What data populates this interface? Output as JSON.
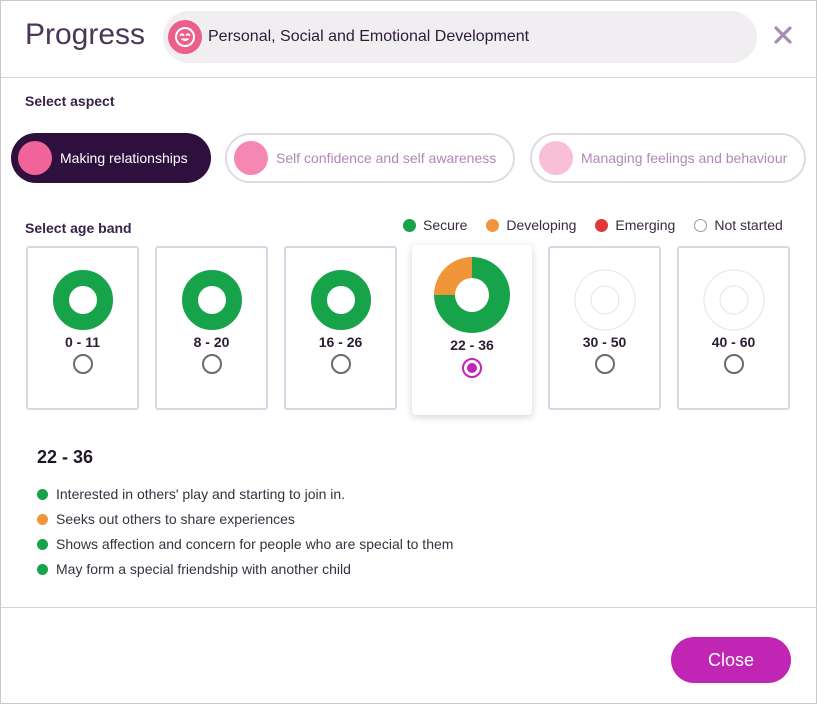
{
  "header": {
    "title": "Progress",
    "area_label": "Personal, Social and Emotional Development",
    "area_icon": "smiley-face-icon",
    "close_icon": "close-icon"
  },
  "colors": {
    "secure": "#16a34a",
    "developing": "#f0963a",
    "emerging": "#e0383b",
    "not_started": "#ffffff",
    "accent": "#c025b4",
    "aspect_active_bg": "#2e0f3e"
  },
  "aspects": {
    "label": "Select aspect",
    "items": [
      {
        "label": "Making relationships",
        "active": true,
        "dot_color": "#f0649a"
      },
      {
        "label": "Self confidence and self awareness",
        "active": false,
        "dot_color": "#f588b2"
      },
      {
        "label": "Managing feelings and behaviour",
        "active": false,
        "dot_color": "#f9bfd6"
      }
    ]
  },
  "age_bands": {
    "label": "Select age band",
    "legend": [
      {
        "label": "Secure",
        "status": "secure"
      },
      {
        "label": "Developing",
        "status": "developing"
      },
      {
        "label": "Emerging",
        "status": "emerging"
      },
      {
        "label": "Not started",
        "status": "not_started"
      }
    ],
    "items": [
      {
        "band": "0 - 11",
        "selected": false,
        "secure": 1,
        "developing": 0,
        "emerging": 0
      },
      {
        "band": "8 - 20",
        "selected": false,
        "secure": 1,
        "developing": 0,
        "emerging": 0
      },
      {
        "band": "16 - 26",
        "selected": false,
        "secure": 1,
        "developing": 0,
        "emerging": 0
      },
      {
        "band": "22 - 36",
        "selected": true,
        "secure": 0.75,
        "developing": 0.25,
        "emerging": 0
      },
      {
        "band": "30 - 50",
        "selected": false,
        "secure": 0,
        "developing": 0,
        "emerging": 0
      },
      {
        "band": "40 - 60",
        "selected": false,
        "secure": 0,
        "developing": 0,
        "emerging": 0
      }
    ]
  },
  "detail": {
    "title": "22 - 36",
    "statements": [
      {
        "text": "Interested in others' play and starting to join in.",
        "status": "secure"
      },
      {
        "text": "Seeks out others to share experiences",
        "status": "developing"
      },
      {
        "text": "Shows affection and concern for people who are special to them",
        "status": "secure"
      },
      {
        "text": "May form a special friendship with another child",
        "status": "secure"
      }
    ]
  },
  "footer": {
    "close_label": "Close"
  }
}
